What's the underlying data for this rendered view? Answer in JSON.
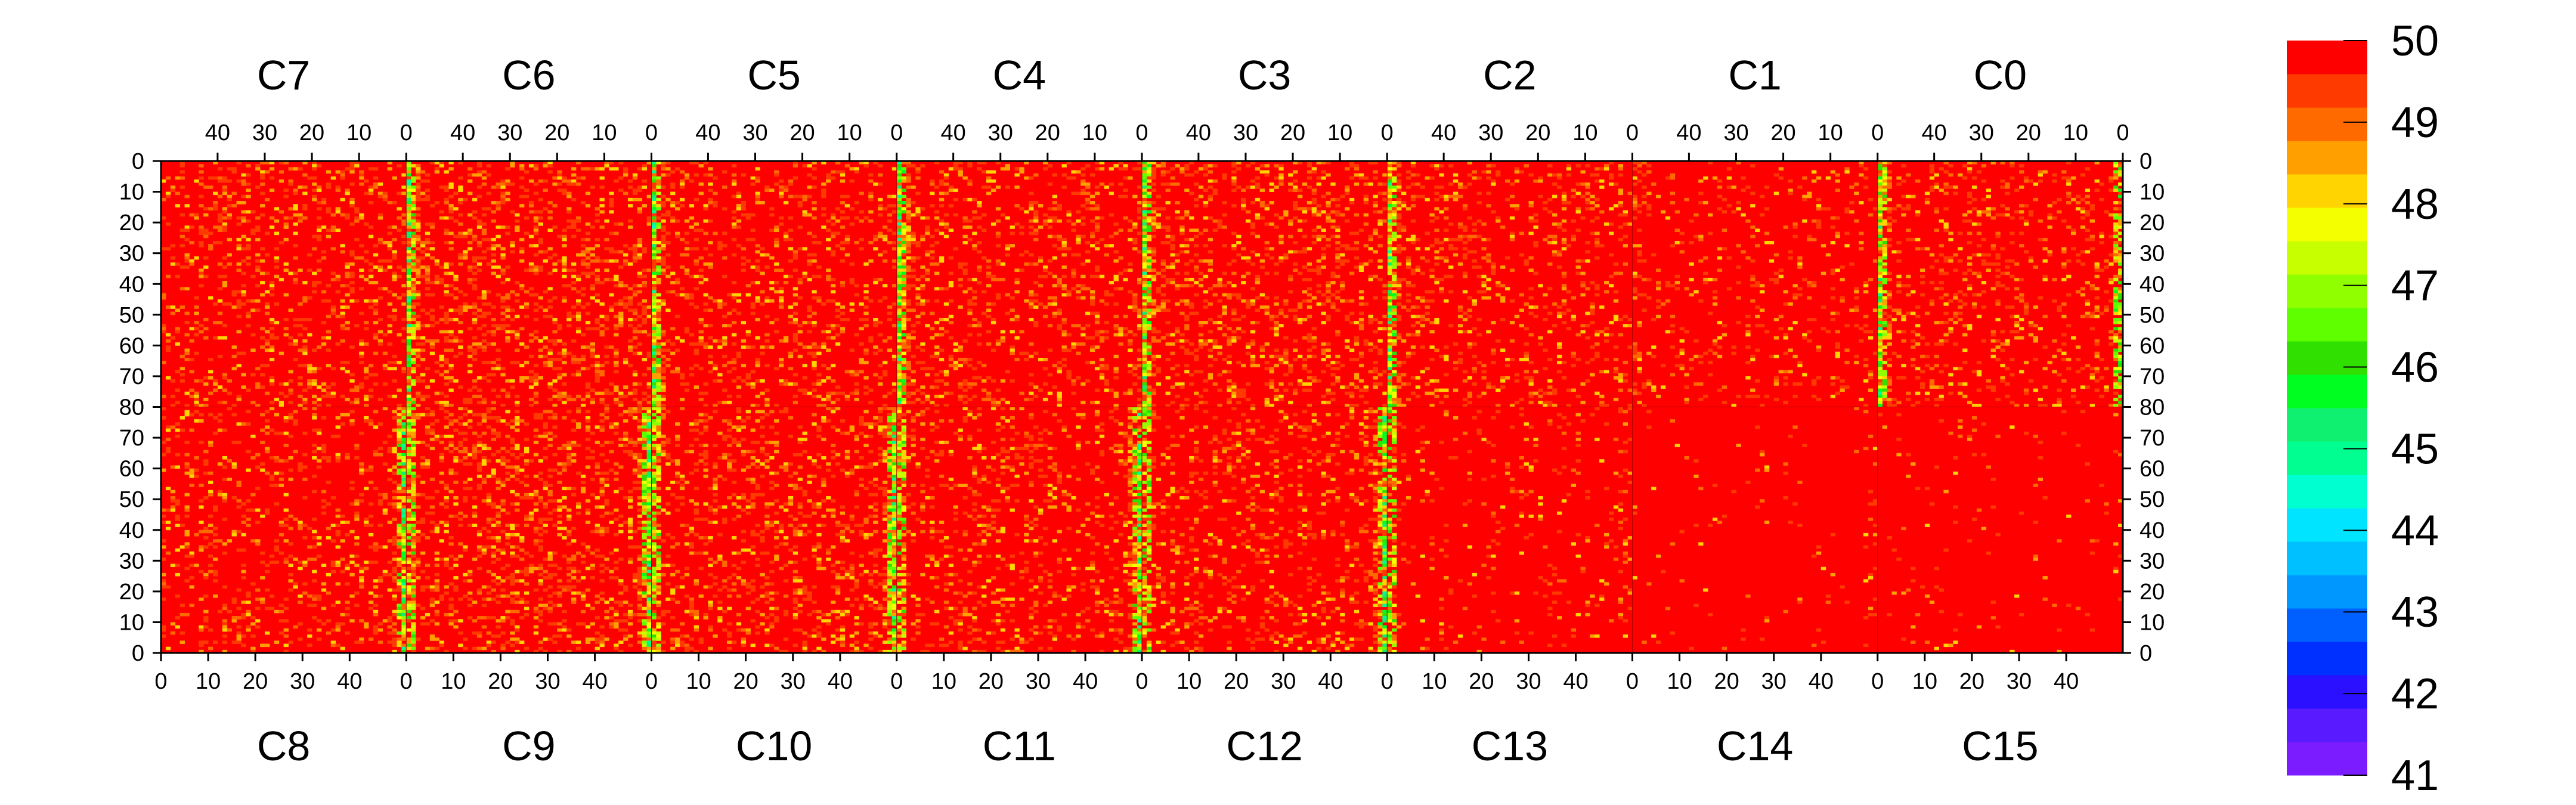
{
  "chart_data": {
    "type": "heatmap",
    "title": "",
    "chips_top": [
      "C7",
      "C6",
      "C5",
      "C4",
      "C3",
      "C2",
      "C1",
      "C0"
    ],
    "chips_bottom": [
      "C8",
      "C9",
      "C10",
      "C11",
      "C12",
      "C13",
      "C14",
      "C15"
    ],
    "columns_per_chip": 52,
    "rows_per_half": 80,
    "x_ticks": [
      0,
      10,
      20,
      30,
      40
    ],
    "x_tick_labels": [
      "0",
      "10",
      "20",
      "30",
      "40"
    ],
    "y_ticks_top": [
      0,
      10,
      20,
      30,
      40,
      50,
      60,
      70,
      80
    ],
    "y_tick_labels_top": [
      "0",
      "10",
      "20",
      "30",
      "40",
      "50",
      "60",
      "70",
      "80"
    ],
    "y_ticks_bottom": [
      70,
      60,
      50,
      40,
      30,
      20,
      10,
      0
    ],
    "y_tick_labels_bottom": [
      "70",
      "60",
      "50",
      "40",
      "30",
      "20",
      "10",
      "0"
    ],
    "z_range": [
      41,
      50
    ],
    "colorbar_labels": [
      "50",
      "49",
      "48",
      "47",
      "46",
      "45",
      "44",
      "43",
      "42",
      "41"
    ],
    "color_scale": [
      "#7a1cff",
      "#5a1aff",
      "#2a10ff",
      "#0030ff",
      "#0060ff",
      "#0098ff",
      "#00c0ff",
      "#00e4ff",
      "#00ffd0",
      "#00ff90",
      "#10f070",
      "#00ff20",
      "#30e000",
      "#60ff00",
      "#90ff00",
      "#c8ff00",
      "#f4ff00",
      "#ffd400",
      "#ffa000",
      "#ff6a00",
      "#ff3a00",
      "#ff0000"
    ],
    "chip_noise": {
      "C7": 0.35,
      "C6": 0.45,
      "C5": 0.35,
      "C4": 0.35,
      "C3": 0.4,
      "C2": 0.3,
      "C1": 0.18,
      "C0": 0.28,
      "C8": 0.3,
      "C9": 0.45,
      "C10": 0.38,
      "C11": 0.3,
      "C12": 0.3,
      "C13": 0.12,
      "C14": 0.03,
      "C15": 0.05
    },
    "grid": false,
    "legend": "colorbar-right"
  }
}
